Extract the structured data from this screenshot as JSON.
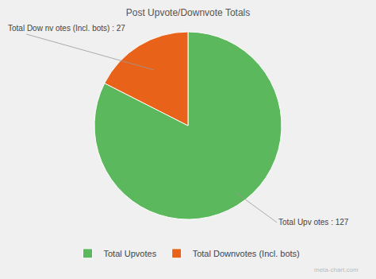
{
  "chart_data": {
    "type": "pie",
    "title": "Post Upvote/Downvote Totals",
    "categories": [
      "Total Upvotes",
      "Total Downvotes (Incl. bots)"
    ],
    "values": [
      127,
      27
    ],
    "colors": [
      "#5cb85c",
      "#e8621a"
    ],
    "annotations": [
      "Total Dow nv otes (Incl. bots) : 27",
      "Total Upv otes : 127"
    ],
    "watermark": "meta-chart.com",
    "legend": "bottom",
    "data_labels": false
  }
}
